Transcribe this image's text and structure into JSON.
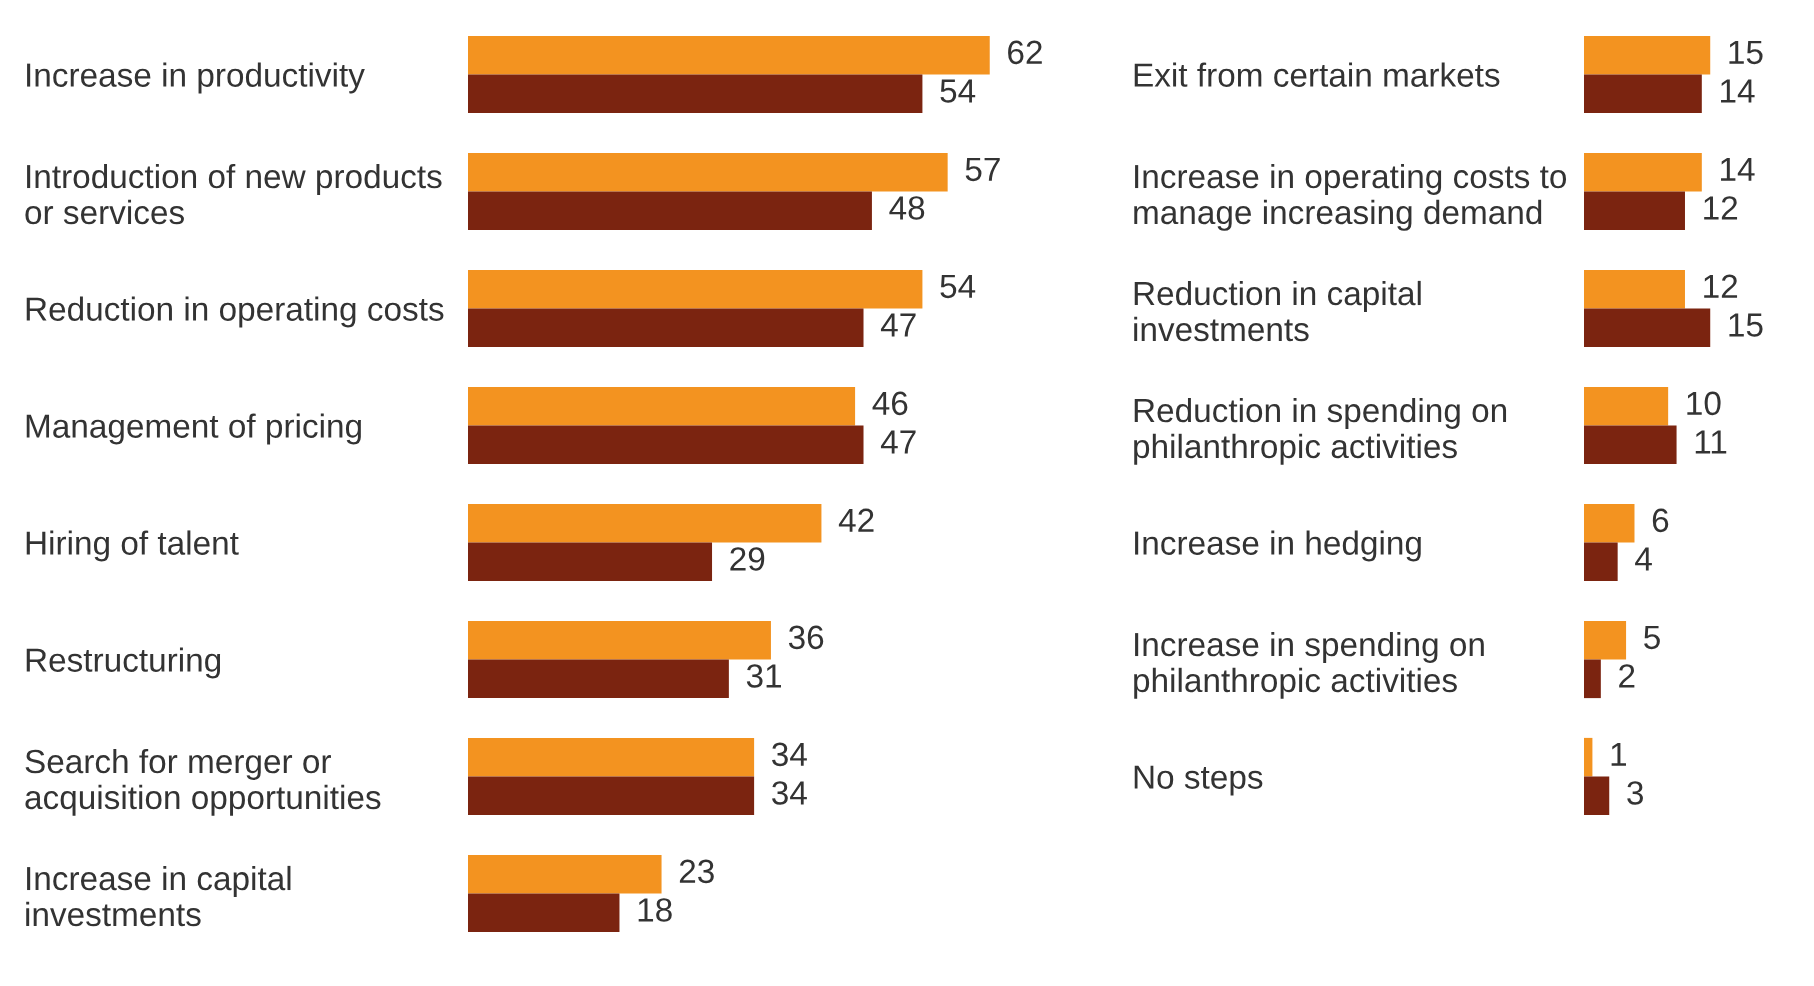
{
  "chart_data": [
    {
      "type": "bar",
      "orientation": "horizontal",
      "data_labels": true,
      "tick_labels": "y",
      "categories": [
        "Increase in productivity",
        "Introduction of new products\nor services",
        "Reduction in operating costs",
        "Management of pricing",
        "Hiring of talent",
        "Restructuring",
        "Search for merger or\nacquisition opportunities",
        "Increase in capital\ninvestments"
      ],
      "series": [
        {
          "color": "#f39320",
          "values": [
            62,
            57,
            54,
            46,
            42,
            36,
            34,
            23
          ]
        },
        {
          "color": "#7b2410",
          "values": [
            54,
            48,
            47,
            47,
            29,
            31,
            34,
            18
          ]
        }
      ]
    },
    {
      "type": "bar",
      "orientation": "horizontal",
      "data_labels": true,
      "tick_labels": "y",
      "categories": [
        "Exit from certain markets",
        "Increase in operating costs to\nmanage increasing demand",
        "Reduction in capital\ninvestments",
        "Reduction in spending on\nphilanthropic activities",
        "Increase in hedging",
        "Increase in spending on\nphilanthropic activities",
        "No steps"
      ],
      "series": [
        {
          "color": "#f39320",
          "values": [
            15,
            14,
            12,
            10,
            6,
            5,
            1
          ]
        },
        {
          "color": "#7b2410",
          "values": [
            14,
            12,
            15,
            11,
            4,
            2,
            3
          ]
        }
      ]
    }
  ]
}
